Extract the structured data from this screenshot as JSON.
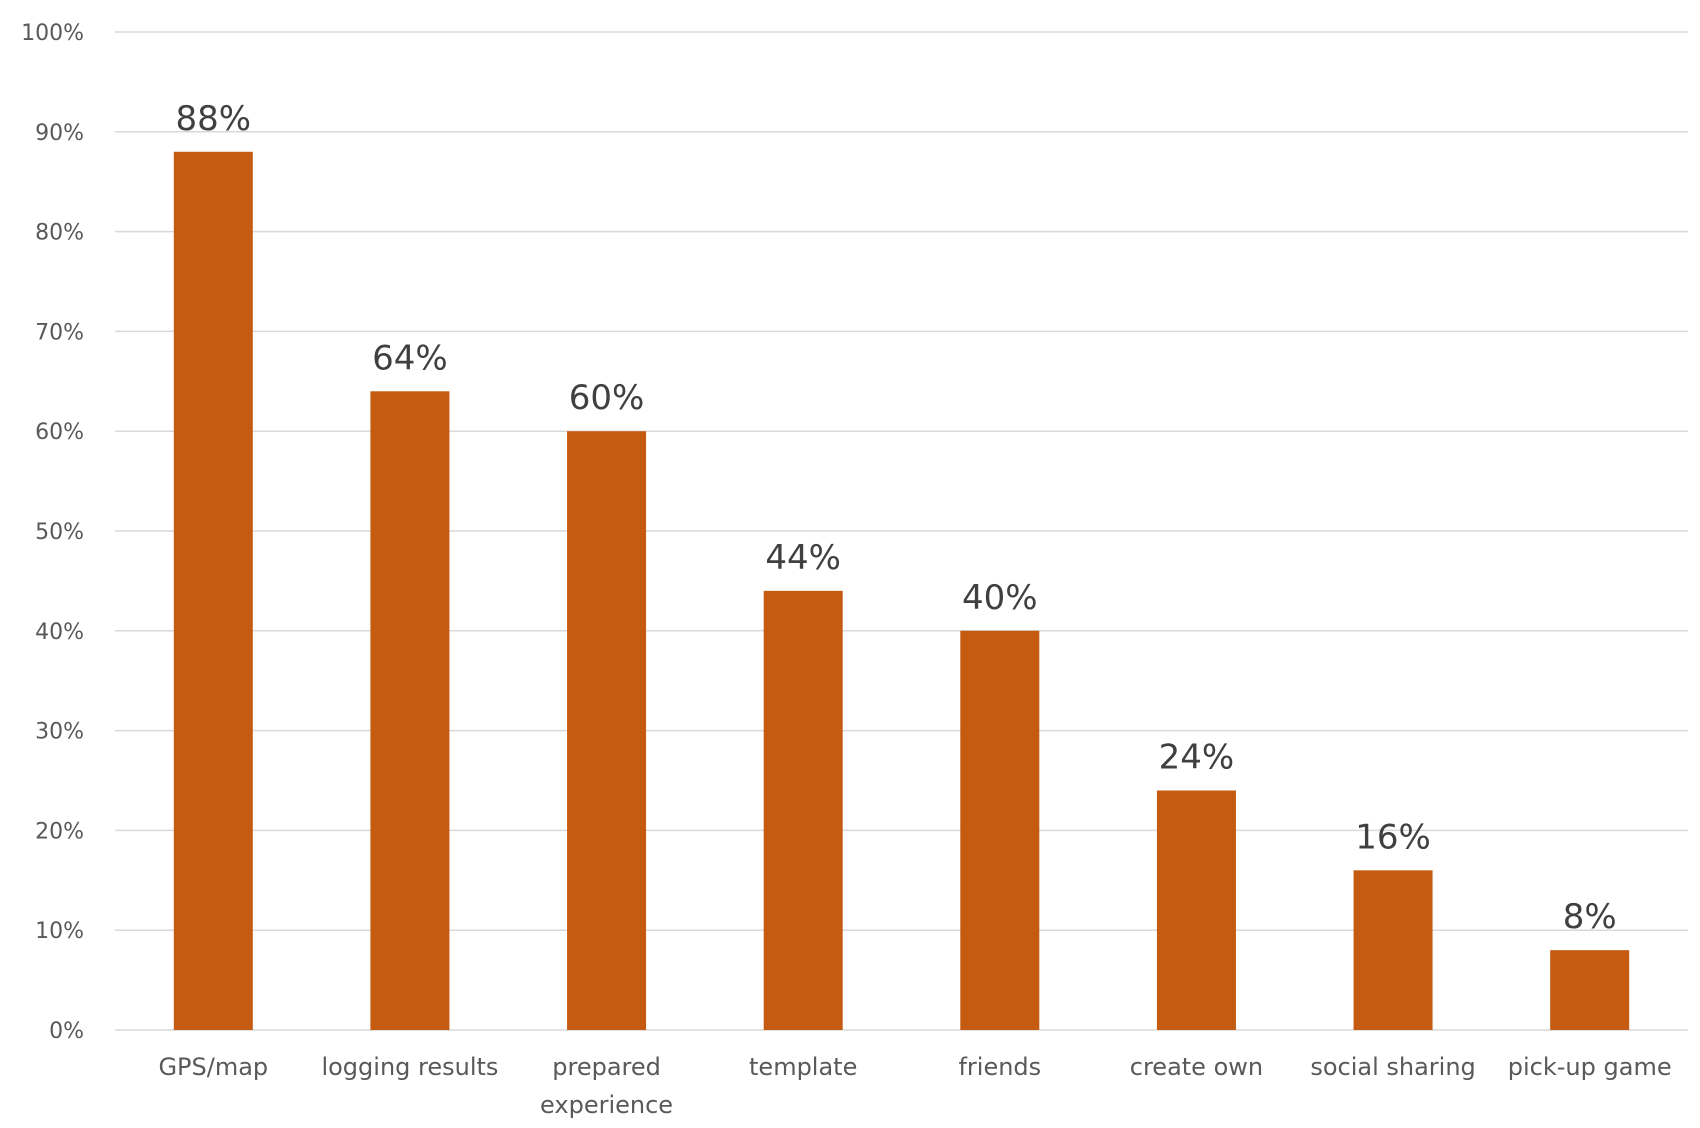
{
  "chart_data": {
    "type": "bar",
    "categories": [
      [
        "GPS/map"
      ],
      [
        "logging results"
      ],
      [
        "prepared",
        "experience"
      ],
      [
        "template"
      ],
      [
        "friends"
      ],
      [
        "create own"
      ],
      [
        "social sharing"
      ],
      [
        "pick-up game"
      ]
    ],
    "values": [
      88,
      64,
      60,
      44,
      40,
      24,
      16,
      8
    ],
    "data_labels": [
      "88%",
      "64%",
      "60%",
      "44%",
      "40%",
      "24%",
      "16%",
      "8%"
    ],
    "y_ticks": [
      {
        "value": 0,
        "label": "0%"
      },
      {
        "value": 10,
        "label": "10%"
      },
      {
        "value": 20,
        "label": "20%"
      },
      {
        "value": 30,
        "label": "30%"
      },
      {
        "value": 40,
        "label": "40%"
      },
      {
        "value": 50,
        "label": "50%"
      },
      {
        "value": 60,
        "label": "60%"
      },
      {
        "value": 70,
        "label": "70%"
      },
      {
        "value": 80,
        "label": "80%"
      },
      {
        "value": 90,
        "label": "90%"
      },
      {
        "value": 100,
        "label": "100%"
      }
    ],
    "ylim": [
      0,
      100
    ],
    "grid": true,
    "legend": "none",
    "title": "",
    "xlabel": "",
    "ylabel": "",
    "bar_color": "#C55A11",
    "grid_color": "#D9D9D9"
  }
}
